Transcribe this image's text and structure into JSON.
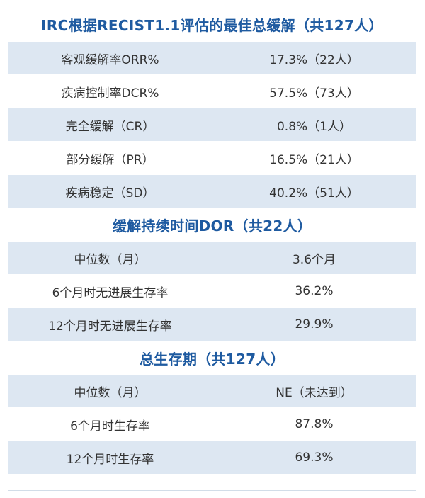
{
  "sections": [
    {
      "title": "IRC根据RECIST1.1评估的最佳总缓解（共127人）",
      "rows": [
        {
          "label": "客观缓解率ORR%",
          "value": "17.3%（22人）"
        },
        {
          "label": "疾病控制率DCR%",
          "value": "57.5%（73人）"
        },
        {
          "label": "完全缓解（CR）",
          "value": "0.8%（1人）"
        },
        {
          "label": "部分缓解（PR）",
          "value": "16.5%（21人）"
        },
        {
          "label": "疾病稳定（SD）",
          "value": "40.2%（51人）"
        }
      ]
    },
    {
      "title": "缓解持续时间DOR（共22人）",
      "rows": [
        {
          "label": "中位数（月）",
          "value": "3.6个月"
        },
        {
          "label": "6个月时无进展生存率",
          "value": "36.2%"
        },
        {
          "label": "12个月时无进展生存率",
          "value": "29.9%"
        }
      ]
    },
    {
      "title": "总生存期（共127人）",
      "rows": [
        {
          "label": "中位数（月）",
          "value": "NE（未达到）"
        },
        {
          "label": "6个月时生存率",
          "value": "87.8%"
        },
        {
          "label": "12个月时生存率",
          "value": "69.3%"
        }
      ]
    }
  ],
  "colors": {
    "title_blue": "#1e5aa0",
    "row_shade": "#dde7f2",
    "row_white": "#ffffff",
    "border": "#d2dde8"
  }
}
